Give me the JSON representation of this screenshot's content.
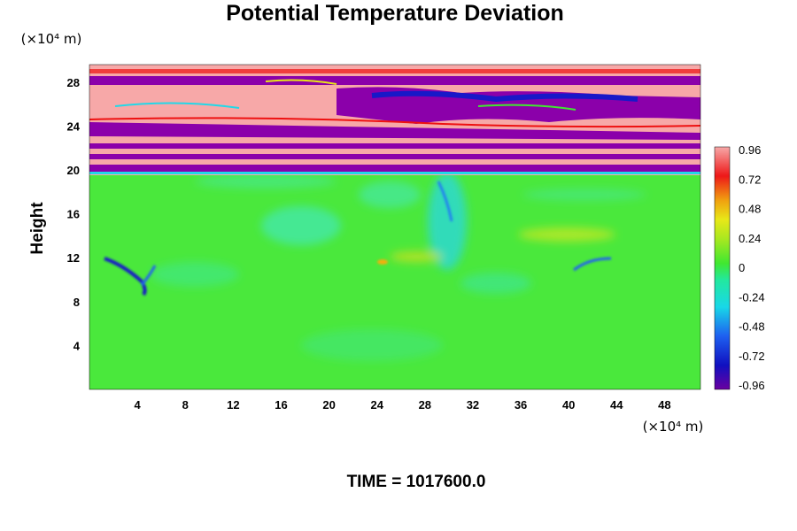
{
  "chart_data": {
    "type": "heatmap",
    "title": "Potential Temperature Deviation",
    "xlabel": "",
    "ylabel": "Height",
    "x_unit": "(×10⁴ m)",
    "y_unit": "(×10⁴ m)",
    "x_ticks": [
      "4",
      "8",
      "12",
      "16",
      "20",
      "24",
      "28",
      "32",
      "36",
      "40",
      "44",
      "48"
    ],
    "y_ticks": [
      "4",
      "8",
      "12",
      "16",
      "20",
      "24",
      "28"
    ],
    "xlim": [
      0,
      51
    ],
    "ylim": [
      0,
      29.6
    ],
    "colorbar": {
      "ticks": [
        "0.96",
        "0.72",
        "0.48",
        "0.24",
        "0",
        "-0.24",
        "-0.48",
        "-0.72",
        "-0.96"
      ],
      "range": [
        -0.96,
        0.96
      ]
    },
    "colors": {
      "pink": "#f7a8a8",
      "purple": "#8b00aa",
      "blue": "#1a1acd",
      "cyan": "#22d8e8",
      "green": "#44e83a",
      "yellow": "#e8e818",
      "red": "#ee1111"
    },
    "time_text": "TIME = 1017600.0"
  }
}
